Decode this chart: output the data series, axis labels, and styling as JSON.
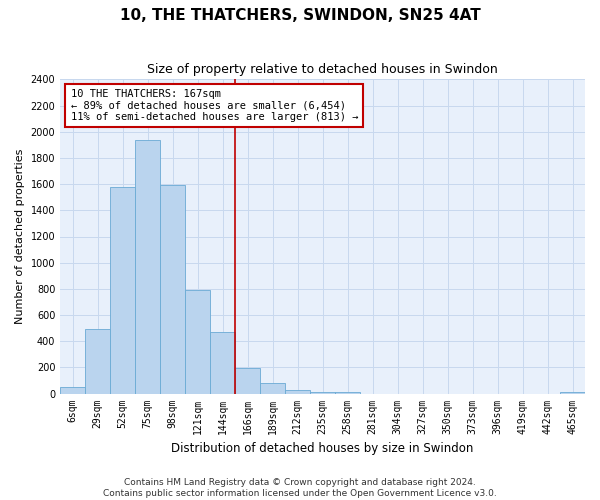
{
  "title": "10, THE THATCHERS, SWINDON, SN25 4AT",
  "subtitle": "Size of property relative to detached houses in Swindon",
  "xlabel": "Distribution of detached houses by size in Swindon",
  "ylabel": "Number of detached properties",
  "footer_line1": "Contains HM Land Registry data © Crown copyright and database right 2024.",
  "footer_line2": "Contains public sector information licensed under the Open Government Licence v3.0.",
  "annotation_line1": "10 THE THATCHERS: 167sqm",
  "annotation_line2": "← 89% of detached houses are smaller (6,454)",
  "annotation_line3": "11% of semi-detached houses are larger (813) →",
  "bar_color": "#bad4ee",
  "bar_edge_color": "#6aaad4",
  "vline_color": "#c00000",
  "annotation_box_edgecolor": "#c00000",
  "grid_color": "#c8d8ee",
  "bg_color": "#e8f0fb",
  "categories": [
    "6sqm",
    "29sqm",
    "52sqm",
    "75sqm",
    "98sqm",
    "121sqm",
    "144sqm",
    "166sqm",
    "189sqm",
    "212sqm",
    "235sqm",
    "258sqm",
    "281sqm",
    "304sqm",
    "327sqm",
    "350sqm",
    "373sqm",
    "396sqm",
    "419sqm",
    "442sqm",
    "465sqm"
  ],
  "values": [
    50,
    490,
    1580,
    1940,
    1590,
    790,
    470,
    195,
    80,
    28,
    15,
    13,
    0,
    0,
    0,
    0,
    0,
    0,
    0,
    0,
    10
  ],
  "ylim": [
    0,
    2400
  ],
  "yticks": [
    0,
    200,
    400,
    600,
    800,
    1000,
    1200,
    1400,
    1600,
    1800,
    2000,
    2200,
    2400
  ],
  "vline_x": 6.5,
  "title_fontsize": 11,
  "subtitle_fontsize": 9,
  "xlabel_fontsize": 8.5,
  "ylabel_fontsize": 8,
  "tick_fontsize": 7,
  "annotation_fontsize": 7.5,
  "footer_fontsize": 6.5
}
